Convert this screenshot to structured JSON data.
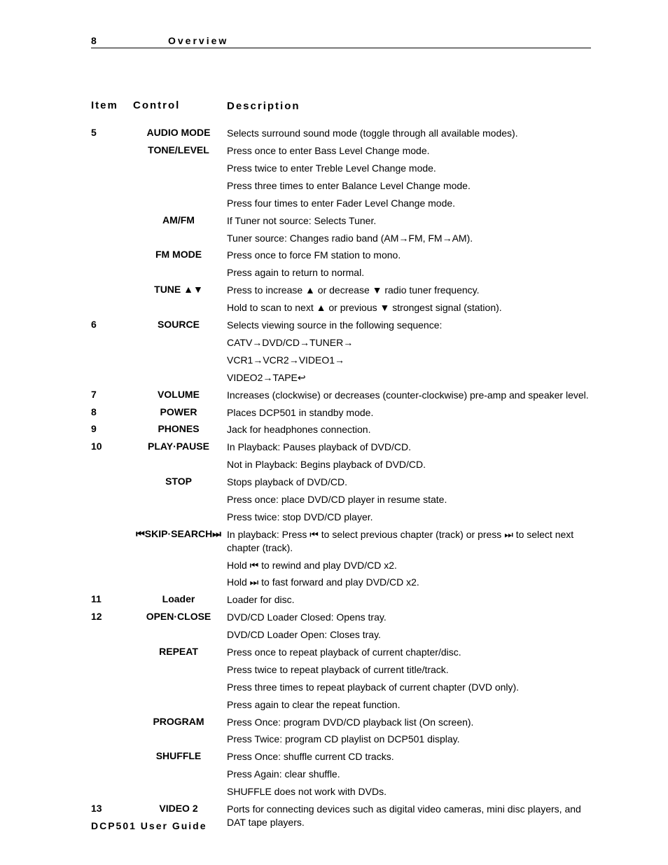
{
  "header": {
    "page_number": "8",
    "section": "Overview"
  },
  "columns": {
    "item": "Item",
    "control": "Control",
    "description": "Description"
  },
  "glyphs": {
    "up": "▲",
    "down": "▼",
    "arrow": "→",
    "return": "↩",
    "prev": "⏮",
    "next": "⏭"
  },
  "rows": [
    {
      "item": "5",
      "control": "AUDIO MODE",
      "desc": "Selects surround sound mode (toggle through all available modes)."
    },
    {
      "item": "",
      "control": "TONE/LEVEL",
      "desc": "Press once to enter Bass Level Change mode."
    },
    {
      "item": "",
      "control": "",
      "desc": "Press twice to enter Treble Level Change mode."
    },
    {
      "item": "",
      "control": "",
      "desc": "Press three times to enter Balance Level Change mode."
    },
    {
      "item": "",
      "control": "",
      "desc": "Press four times to enter Fader Level Change mode."
    },
    {
      "item": "",
      "control": "AM/FM",
      "desc": "If Tuner not source: Selects Tuner."
    },
    {
      "item": "",
      "control": "",
      "desc": "Tuner source: Changes radio band (AM→FM, FM→AM)."
    },
    {
      "item": "",
      "control": "FM MODE",
      "desc": "Press once to force FM station to mono."
    },
    {
      "item": "",
      "control": "",
      "desc": "Press again to return to normal."
    },
    {
      "item": "",
      "control": "TUNE ▲▼",
      "desc": "Press to increase ▲ or decrease ▼ radio tuner frequency."
    },
    {
      "item": "",
      "control": "",
      "desc": "Hold to scan to next ▲ or previous ▼ strongest signal (station)."
    },
    {
      "item": "6",
      "control": "SOURCE",
      "desc": "Selects viewing source in the following sequence:"
    },
    {
      "item": "",
      "control": "",
      "desc": "CATV→DVD/CD→TUNER→"
    },
    {
      "item": "",
      "control": "",
      "desc": "VCR1→VCR2→VIDEO1→"
    },
    {
      "item": "",
      "control": "",
      "desc": "VIDEO2→TAPE↩"
    },
    {
      "item": "7",
      "control": "VOLUME",
      "desc": "Increases (clockwise) or decreases (counter-clockwise) pre-amp and speaker level."
    },
    {
      "item": "8",
      "control": "POWER",
      "desc": "Places DCP501 in standby mode."
    },
    {
      "item": "9",
      "control": "PHONES",
      "desc": "Jack for headphones connection."
    },
    {
      "item": "10",
      "control": "PLAY·PAUSE",
      "desc": "In Playback: Pauses playback of DVD/CD."
    },
    {
      "item": "",
      "control": "",
      "desc": "Not in Playback: Begins playback of DVD/CD."
    },
    {
      "item": "",
      "control": "STOP",
      "desc": "Stops playback of DVD/CD."
    },
    {
      "item": "",
      "control": "",
      "desc": "Press once: place DVD/CD player in resume state."
    },
    {
      "item": "",
      "control": "",
      "desc": "Press twice: stop DVD/CD player."
    },
    {
      "item": "",
      "control": "⏮SKIP·SEARCH⏭",
      "desc": "In playback: Press ⏮ to select previous chapter (track) or press ⏭ to select next chapter (track)."
    },
    {
      "item": "",
      "control": "",
      "desc": "Hold ⏮ to  rewind and play DVD/CD x2."
    },
    {
      "item": "",
      "control": "",
      "desc": "Hold ⏭ to fast forward and play DVD/CD x2."
    },
    {
      "item": "11",
      "control": "Loader",
      "desc": "Loader for disc."
    },
    {
      "item": "12",
      "control": "OPEN·CLOSE",
      "desc": "DVD/CD Loader Closed: Opens tray."
    },
    {
      "item": "",
      "control": "",
      "desc": "DVD/CD Loader Open: Closes tray."
    },
    {
      "item": "",
      "control": "REPEAT",
      "desc": "Press once to repeat playback of current chapter/disc."
    },
    {
      "item": "",
      "control": "",
      "desc": "Press twice to repeat playback of current title/track."
    },
    {
      "item": "",
      "control": "",
      "desc": "Press three times to repeat playback of current chapter (DVD only)."
    },
    {
      "item": "",
      "control": "",
      "desc": "Press again to clear the repeat function."
    },
    {
      "item": "",
      "control": "PROGRAM",
      "desc": "Press Once: program DVD/CD playback list (On screen)."
    },
    {
      "item": "",
      "control": "",
      "desc": "Press Twice: program CD playlist on DCP501 display."
    },
    {
      "item": "",
      "control": "SHUFFLE",
      "desc": "Press Once: shuffle current CD tracks."
    },
    {
      "item": "",
      "control": "",
      "desc": "Press Again: clear shuffle."
    },
    {
      "item": "",
      "control": "",
      "desc": "SHUFFLE does not work with DVDs."
    },
    {
      "item": "13",
      "control": "VIDEO 2",
      "desc": "Ports for connecting devices such as digital video cameras, mini disc players, and DAT tape players."
    }
  ],
  "footer": "DCP501 User Guide"
}
